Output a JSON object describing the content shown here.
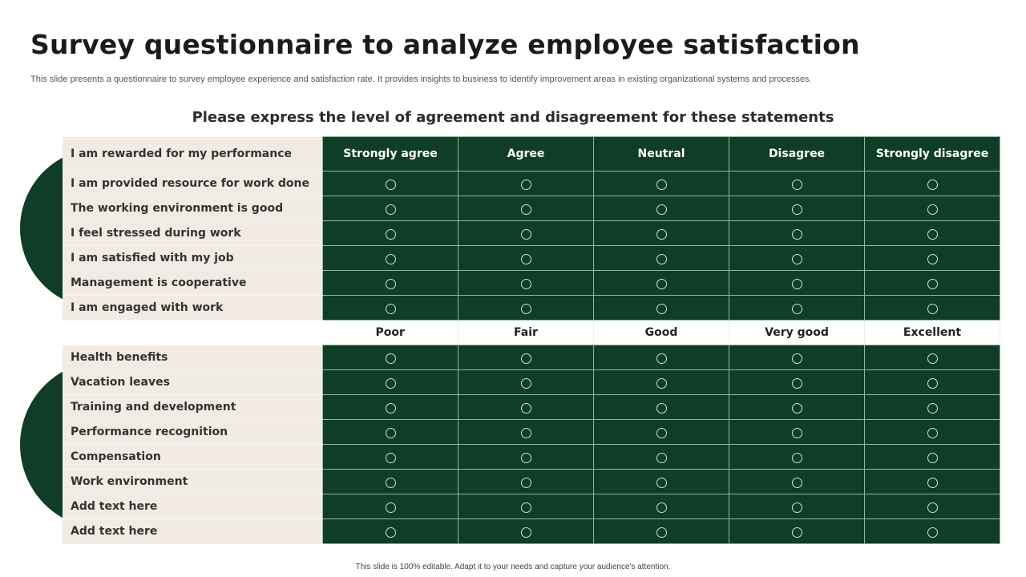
{
  "title": "Survey questionnaire to analyze employee satisfaction",
  "subtitle": "This slide presents a questionnaire to survey employee experience and satisfaction rate. It provides insights to business to identify improvement areas in existing organizational systems and processes.",
  "heading": "Please express the level of agreement and disagreement for these statements",
  "agreement": {
    "first_statement": "I am rewarded for my performance",
    "columns": [
      "Strongly agree",
      "Agree",
      "Neutral",
      "Disagree",
      "Strongly disagree"
    ],
    "statements": [
      "I am provided resource for work done",
      "The working environment is good",
      "I feel stressed during work",
      "I am satisfied with my job",
      "Management is cooperative",
      "I am engaged with work"
    ]
  },
  "rating": {
    "columns": [
      "Poor",
      "Fair",
      "Good",
      "Very good",
      "Excellent"
    ],
    "items": [
      "Health benefits",
      "Vacation leaves",
      "Training and development",
      "Performance recognition",
      "Compensation",
      "Work environment",
      "Add text here",
      "Add text here"
    ]
  },
  "footer": "This slide is 100% editable.  Adapt it to your needs and capture your audience's attention.",
  "colors": {
    "dark_green": "#0f3d28",
    "beige": "#f1ebe4"
  }
}
